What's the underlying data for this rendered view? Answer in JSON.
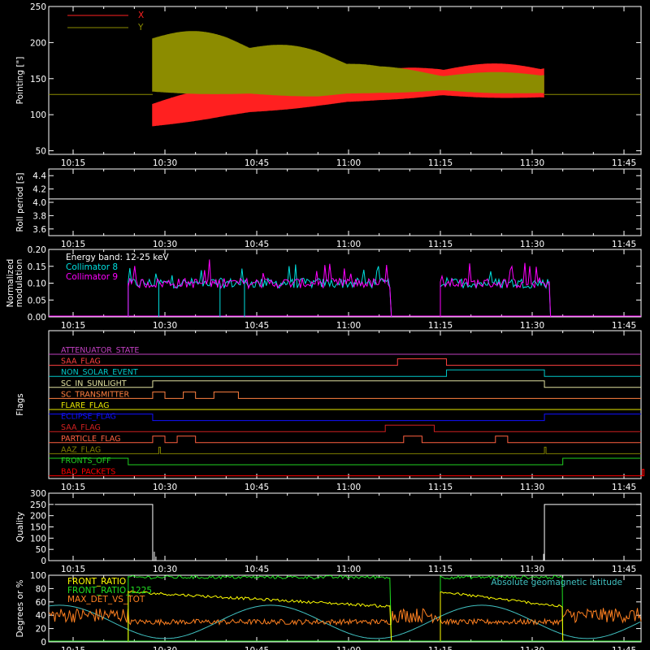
{
  "time_ticks": [
    "10:15",
    "10:30",
    "10:45",
    "11:00",
    "11:15",
    "11:30",
    "11:45"
  ],
  "chart_data": [
    {
      "type": "line",
      "panel": "pointing",
      "ylabel": "Pointing [\"]",
      "ylim": [
        45,
        250
      ],
      "yticks": [
        50,
        100,
        150,
        200,
        250
      ],
      "legend": {
        "placement": "top-left",
        "items": [
          {
            "name": "X",
            "color": "#ff2020"
          },
          {
            "name": "Y",
            "color": "#8c8c00"
          }
        ]
      },
      "baseline": 128,
      "active_range": [
        "10:28",
        "11:32"
      ],
      "series": [
        {
          "name": "X",
          "color": "#ff2020",
          "upper": [
            [
              "10:28",
              122
            ],
            [
              "10:40",
              140
            ],
            [
              "10:55",
              150
            ],
            [
              "11:05",
              162
            ],
            [
              "11:15",
              170
            ],
            [
              "11:32",
              172
            ]
          ],
          "lower": [
            [
              "10:28",
              82
            ],
            [
              "10:40",
              98
            ],
            [
              "10:55",
              112
            ],
            [
              "11:05",
              120
            ],
            [
              "11:15",
              125
            ],
            [
              "11:32",
              122
            ]
          ]
        },
        {
          "name": "Y",
          "color": "#8c8c00",
          "upper": [
            [
              "10:28",
              222
            ],
            [
              "10:40",
              212
            ],
            [
              "10:55",
              190
            ],
            [
              "11:05",
              168
            ],
            [
              "11:15",
              158
            ],
            [
              "11:32",
              160
            ]
          ],
          "lower": [
            [
              "10:28",
              130
            ],
            [
              "10:40",
              128
            ],
            [
              "10:55",
              125
            ],
            [
              "11:05",
              130
            ],
            [
              "11:15",
              132
            ],
            [
              "11:32",
              128
            ]
          ]
        }
      ]
    },
    {
      "type": "line",
      "panel": "roll",
      "ylabel": "Roll period [s]",
      "ylim": [
        3.5,
        4.5
      ],
      "yticks": [
        "3.6",
        "3.8",
        "4.0",
        "4.2",
        "4.4"
      ],
      "series": [
        {
          "name": "roll",
          "color": "#ffffff",
          "value": 4.05
        }
      ]
    },
    {
      "type": "line",
      "panel": "modulation",
      "ylabel": "Normalized modulation",
      "ylim": [
        0,
        0.2
      ],
      "yticks": [
        "0.00",
        "0.05",
        "0.10",
        "0.15",
        "0.20"
      ],
      "annotation": "Energy band: 12-25 keV",
      "series": [
        {
          "name": "Collimator 8",
          "color": "#00e0e0"
        },
        {
          "name": "Collimator 9",
          "color": "#ff00ff"
        }
      ],
      "active_ranges": [
        [
          "10:24",
          "11:07"
        ],
        [
          "11:15",
          "11:33"
        ]
      ],
      "level": 0.1,
      "dips_collimator8": [
        "10:29",
        "10:39",
        "10:43"
      ]
    },
    {
      "type": "line",
      "panel": "flags",
      "ylabel": "Flags",
      "flags": [
        {
          "name": "ATTENUATOR_STATE",
          "color": "#c040c0",
          "segments": []
        },
        {
          "name": "SAA_FLAG",
          "color": "#ff4040",
          "segments": [
            [
              "11:08",
              "11:16"
            ]
          ]
        },
        {
          "name": "NON_SOLAR_EVENT",
          "color": "#00c8c8",
          "segments": [
            [
              "11:16",
              "11:32"
            ]
          ]
        },
        {
          "name": "SC_IN_SUNLIGHT",
          "color": "#e0e0a0",
          "segments": [
            [
              "10:28",
              "11:32"
            ]
          ]
        },
        {
          "name": "SC_TRANSMITTER",
          "color": "#ff8040",
          "segments": [
            [
              "10:28",
              "10:30"
            ],
            [
              "10:33",
              "10:35"
            ],
            [
              "10:38",
              "10:42"
            ]
          ]
        },
        {
          "name": "FLARE_FLAG",
          "color": "#e8e800",
          "segments": []
        },
        {
          "name": "ECLIPSE_FLAG",
          "color": "#1010ff",
          "inverted": true,
          "segments": [
            [
              "10:28",
              "11:32"
            ]
          ]
        },
        {
          "name": "SAA_FLAG",
          "color": "#d02020",
          "segments": [
            [
              "11:06",
              "11:14"
            ]
          ]
        },
        {
          "name": "PARTICLE_FLAG",
          "color": "#ff6040",
          "segments": [
            [
              "10:28",
              "10:30"
            ],
            [
              "10:32",
              "10:35"
            ],
            [
              "11:09",
              "11:12"
            ],
            [
              "11:24",
              "11:26"
            ]
          ]
        },
        {
          "name": "AAZ_FLAG",
          "color": "#808000",
          "segments": [
            [
              "10:29",
              "10:29"
            ],
            [
              "11:32",
              "11:32"
            ]
          ]
        },
        {
          "name": "FRONTS_OFF",
          "color": "#20d020",
          "inverted": true,
          "segments": [
            [
              "10:24",
              "11:35"
            ]
          ]
        },
        {
          "name": "BAD_PACKETS",
          "color": "#ff0000",
          "segments": [
            [
              "11:48",
              "11:48"
            ]
          ]
        }
      ]
    },
    {
      "type": "line",
      "panel": "quality",
      "ylabel": "Quality",
      "ylim": [
        0,
        300
      ],
      "yticks": [
        "0",
        "50",
        "100",
        "150",
        "200",
        "250",
        "300"
      ],
      "series": [
        {
          "name": "quality",
          "color": "#ffffff",
          "high": 250,
          "high_ranges": [
            [
              "10:12",
              "10:28"
            ],
            [
              "11:32",
              "11:49"
            ]
          ]
        }
      ]
    },
    {
      "type": "line",
      "panel": "ratios",
      "ylabel": "Degrees or %",
      "ylim": [
        0,
        100
      ],
      "yticks": [
        "0",
        "20",
        "40",
        "60",
        "80",
        "100"
      ],
      "annotation": "Absolute geomagnetic latitude",
      "series": [
        {
          "name": "FRONT_RATIO",
          "color": "#ffff00",
          "level": 75
        },
        {
          "name": "FRONT_RATIO_1225",
          "color": "#20e020",
          "level": 97
        },
        {
          "name": "MAX_DET_VS_TOT",
          "color": "#ff8020",
          "level": 30
        },
        {
          "name": "Absolute geomagnetic latitude",
          "color": "#40c0c0"
        }
      ],
      "active_ranges": [
        [
          "10:24",
          "11:07"
        ],
        [
          "11:15",
          "11:35"
        ]
      ]
    }
  ],
  "colors": {
    "background": "#000000",
    "axes": "#ffffff"
  }
}
